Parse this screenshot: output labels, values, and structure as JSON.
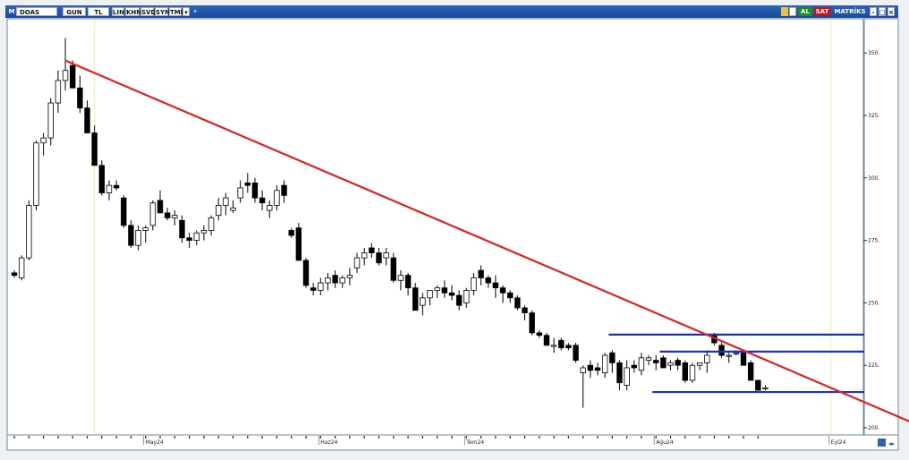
{
  "toolbar": {
    "symbol_prefix": "M",
    "symbol": "DOAS",
    "period": "GUN",
    "currency": "TL",
    "buttons": [
      "LIN",
      "KHN",
      "SVD",
      "SYM",
      "TMP"
    ],
    "buy_label": "AL",
    "sell_label": "SAT",
    "matrix_label": "MATRİKS"
  },
  "chart_data": {
    "type": "candlestick",
    "title": "",
    "xlabel": "",
    "ylabel": "",
    "ylim": [
      199,
      360
    ],
    "y_ticks": [
      "200.",
      "225.",
      "250.",
      "275.",
      "300.",
      "325.",
      "350."
    ],
    "y_tick_values": [
      200,
      225,
      250,
      275,
      300,
      325,
      350
    ],
    "month_labels": [
      "May24",
      "Haz24",
      "Tem24",
      "Ağu24",
      "Eyl24"
    ],
    "month_label_index": [
      18,
      42,
      62,
      88,
      112
    ],
    "vertical_markers_index": [
      11,
      112
    ],
    "candles": [
      [
        262,
        263,
        260,
        261
      ],
      [
        260,
        269,
        259,
        268
      ],
      [
        268,
        291,
        267,
        289
      ],
      [
        289,
        315,
        287,
        314
      ],
      [
        314,
        318,
        309,
        316
      ],
      [
        316,
        332,
        313,
        330
      ],
      [
        330,
        343,
        326,
        339
      ],
      [
        339,
        356,
        335,
        343
      ],
      [
        345,
        347,
        337,
        336
      ],
      [
        336,
        341,
        326,
        328
      ],
      [
        328,
        331,
        318,
        318
      ],
      [
        318,
        321,
        306,
        305
      ],
      [
        305,
        307,
        293,
        294
      ],
      [
        294,
        299,
        291,
        297
      ],
      [
        297,
        299,
        295,
        296
      ],
      [
        292,
        293,
        280,
        281
      ],
      [
        281,
        283,
        272,
        273
      ],
      [
        273,
        281,
        271,
        279
      ],
      [
        279,
        281,
        274,
        280
      ],
      [
        281,
        291,
        279,
        290
      ],
      [
        291,
        295,
        287,
        286
      ],
      [
        286,
        288,
        283,
        284
      ],
      [
        284,
        287,
        281,
        285
      ],
      [
        283,
        285,
        274,
        276
      ],
      [
        276,
        278,
        272,
        275
      ],
      [
        275,
        279,
        273,
        278
      ],
      [
        278,
        281,
        275,
        279
      ],
      [
        279,
        285,
        277,
        284
      ],
      [
        285,
        292,
        283,
        289
      ],
      [
        289,
        294,
        285,
        292
      ],
      [
        287,
        291,
        286,
        288
      ],
      [
        292,
        299,
        290,
        296
      ],
      [
        298,
        302,
        294,
        297
      ],
      [
        298,
        300,
        290,
        292
      ],
      [
        292,
        295,
        287,
        290
      ],
      [
        287,
        291,
        284,
        289
      ],
      [
        289,
        297,
        287,
        295
      ],
      [
        297,
        299,
        290,
        293
      ],
      [
        279,
        280,
        276,
        277
      ],
      [
        280,
        282,
        267,
        267
      ],
      [
        267,
        268,
        256,
        257
      ],
      [
        256,
        258,
        253,
        255
      ],
      [
        255,
        260,
        253,
        258
      ],
      [
        258,
        262,
        255,
        260
      ],
      [
        261,
        263,
        256,
        258
      ],
      [
        258,
        261,
        256,
        260
      ],
      [
        260,
        264,
        257,
        261
      ],
      [
        264,
        270,
        262,
        268
      ],
      [
        268,
        272,
        265,
        270
      ],
      [
        272,
        274,
        268,
        270
      ],
      [
        270,
        272,
        265,
        266
      ],
      [
        268,
        272,
        265,
        270
      ],
      [
        268,
        270,
        258,
        259
      ],
      [
        259,
        263,
        255,
        261
      ],
      [
        261,
        262,
        253,
        256
      ],
      [
        256,
        258,
        248,
        247
      ],
      [
        249,
        254,
        245,
        252
      ],
      [
        252,
        255,
        249,
        255
      ],
      [
        255,
        257,
        252,
        256
      ],
      [
        256,
        259,
        252,
        254
      ],
      [
        254,
        257,
        251,
        253
      ],
      [
        253,
        255,
        247,
        249
      ],
      [
        250,
        256,
        248,
        255
      ],
      [
        255,
        262,
        253,
        260
      ],
      [
        263,
        265,
        257,
        260
      ],
      [
        260,
        261,
        256,
        258
      ],
      [
        258,
        261,
        252,
        256
      ],
      [
        256,
        257,
        250,
        254
      ],
      [
        254,
        255,
        250,
        252
      ],
      [
        252,
        253,
        247,
        248
      ],
      [
        248,
        249,
        243,
        246
      ],
      [
        246,
        247,
        237,
        238
      ],
      [
        238,
        239,
        236,
        237
      ],
      [
        237,
        238,
        233,
        233
      ],
      [
        233,
        236,
        230,
        233
      ],
      [
        235,
        236,
        231,
        232
      ],
      [
        233,
        234,
        231,
        232
      ],
      [
        233,
        234,
        226,
        227
      ],
      [
        222,
        225,
        208,
        224
      ],
      [
        225,
        227,
        220,
        223
      ],
      [
        224,
        226,
        221,
        223
      ],
      [
        222,
        230,
        220,
        229
      ],
      [
        230,
        231,
        222,
        226
      ],
      [
        226,
        227,
        215,
        218
      ],
      [
        217,
        227,
        215,
        224
      ],
      [
        225,
        227,
        222,
        224
      ],
      [
        223,
        230,
        221,
        228
      ],
      [
        227,
        229,
        225,
        228
      ],
      [
        227,
        229,
        223,
        226
      ],
      [
        228,
        229,
        225,
        224
      ],
      [
        225,
        227,
        223,
        226
      ],
      [
        227,
        228,
        223,
        225
      ],
      [
        226,
        227,
        218,
        219
      ],
      [
        219,
        226,
        218,
        225
      ],
      [
        225,
        226,
        223,
        226
      ],
      [
        226,
        231,
        222,
        229
      ],
      [
        237,
        238,
        233,
        234
      ],
      [
        233,
        234,
        228,
        229
      ],
      [
        229,
        230,
        226,
        229
      ],
      [
        230,
        231,
        229,
        230
      ],
      [
        230,
        231,
        225,
        225
      ],
      [
        226,
        227,
        219,
        219
      ],
      [
        219,
        219,
        215,
        215
      ],
      [
        216,
        217,
        215,
        216
      ]
    ],
    "trend_line": {
      "from": {
        "index": 7,
        "value": 347
      },
      "to": {
        "index": 124,
        "value": 201
      }
    },
    "horizontal_lines": [
      {
        "value": 237.3,
        "from_index": 82,
        "color": "#1a2fd6"
      },
      {
        "value": 230.5,
        "from_index": 89,
        "color": "#1a2fd6"
      },
      {
        "value": 214.3,
        "from_index": 88,
        "color": "#1a2fd6"
      }
    ],
    "colors": {
      "trend": "#e32020",
      "levels": "#1a2fd6",
      "up_candle": "#ffffff",
      "down_candle": "#000000",
      "marker": "#e9f59a"
    }
  }
}
